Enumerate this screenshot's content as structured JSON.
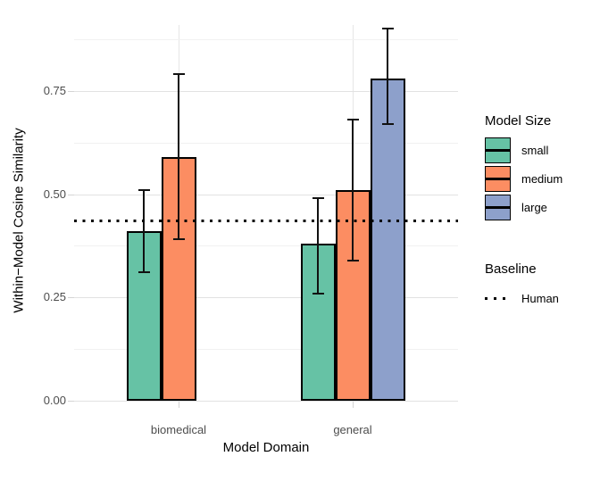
{
  "chart_data": {
    "type": "bar",
    "title": "",
    "xlabel": "Model Domain",
    "ylabel": "Within−Model Cosine Similarity",
    "categories": [
      "biomedical",
      "general"
    ],
    "series": [
      {
        "name": "small",
        "color": "#66C2A5",
        "values": [
          0.41,
          0.38
        ],
        "errors_low": [
          0.31,
          0.26
        ],
        "errors_high": [
          0.51,
          0.49
        ]
      },
      {
        "name": "medium",
        "color": "#FC8D62",
        "values": [
          0.59,
          0.51
        ],
        "errors_low": [
          0.39,
          0.34
        ],
        "errors_high": [
          0.79,
          0.68
        ]
      },
      {
        "name": "large",
        "color": "#8DA0CB",
        "values": [
          null,
          0.78
        ],
        "errors_low": [
          null,
          0.67
        ],
        "errors_high": [
          null,
          0.9
        ]
      }
    ],
    "baseline": {
      "name": "Human",
      "value": 0.435,
      "style": "dotted",
      "color": "#000000"
    },
    "yticks": {
      "labels": [
        "0.00",
        "0.25",
        "0.50",
        "0.75"
      ],
      "values": [
        0,
        0.25,
        0.5,
        0.75
      ]
    },
    "yticks_minor": [
      0.125,
      0.375,
      0.625,
      0.875
    ],
    "ylim": [
      0,
      0.91
    ],
    "grid": true,
    "legend_position": "right",
    "legend": {
      "size_title": "Model Size",
      "baseline_title": "Baseline"
    }
  },
  "colors": {
    "grid_major": "#e2e2e2",
    "grid_minor": "#f1f1f1",
    "tick_text": "#4d4d4d",
    "bar_border": "#000000",
    "background": "#ffffff"
  }
}
